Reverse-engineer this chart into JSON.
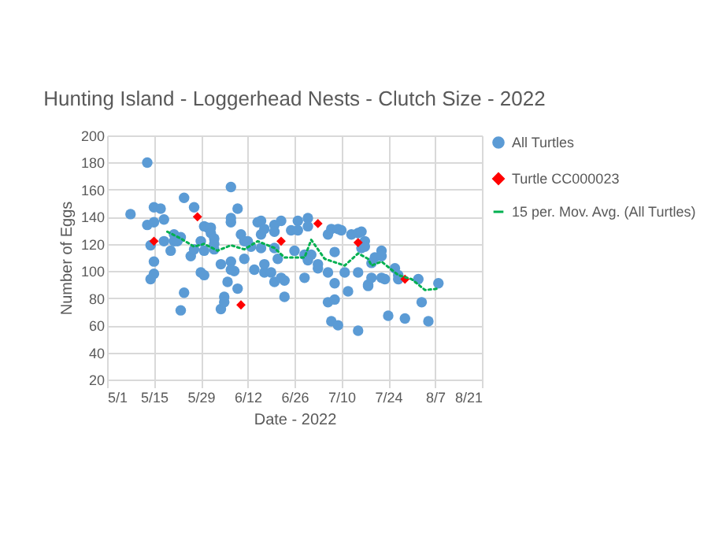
{
  "chart_data": {
    "type": "scatter",
    "title": "Hunting Island - Loggerhead Nests - Clutch Size - 2022",
    "xlabel": "Date - 2022",
    "ylabel": "Number of Eggs",
    "xlim": [
      "2022-05-01",
      "2022-08-21"
    ],
    "xticks": [
      {
        "value": "2022-05-01",
        "label": "5/1"
      },
      {
        "value": "2022-05-15",
        "label": "5/15"
      },
      {
        "value": "2022-05-29",
        "label": "5/29"
      },
      {
        "value": "2022-06-12",
        "label": "6/12"
      },
      {
        "value": "2022-06-26",
        "label": "6/26"
      },
      {
        "value": "2022-07-10",
        "label": "7/10"
      },
      {
        "value": "2022-07-24",
        "label": "7/24"
      },
      {
        "value": "2022-08-07",
        "label": "8/7"
      },
      {
        "value": "2022-08-21",
        "label": "8/21"
      }
    ],
    "ylim": [
      20,
      200
    ],
    "yticks": [
      20,
      40,
      60,
      80,
      100,
      120,
      140,
      160,
      180,
      200
    ],
    "grid": true,
    "legend": "right",
    "series": [
      {
        "name": "All Turtles",
        "marker": "circle",
        "color": "#5b9bd5",
        "x": [
          "2022-05-08",
          "2022-05-13",
          "2022-05-13",
          "2022-05-15",
          "2022-05-15",
          "2022-05-14",
          "2022-05-15",
          "2022-05-15",
          "2022-05-14",
          "2022-05-17",
          "2022-05-18",
          "2022-05-18",
          "2022-05-20",
          "2022-05-21",
          "2022-05-21",
          "2022-05-23",
          "2022-05-22",
          "2022-05-24",
          "2022-05-24",
          "2022-05-23",
          "2022-05-26",
          "2022-05-27",
          "2022-05-27",
          "2022-05-29",
          "2022-05-30",
          "2022-05-30",
          "2022-05-31",
          "2022-05-29",
          "2022-05-30",
          "2022-06-01",
          "2022-06-01",
          "2022-06-02",
          "2022-06-02",
          "2022-06-02",
          "2022-06-04",
          "2022-06-05",
          "2022-06-04",
          "2022-06-05",
          "2022-06-06",
          "2022-06-07",
          "2022-06-07",
          "2022-06-07",
          "2022-06-08",
          "2022-06-07",
          "2022-06-09",
          "2022-06-09",
          "2022-06-07",
          "2022-06-10",
          "2022-06-11",
          "2022-06-11",
          "2022-06-12",
          "2022-06-13",
          "2022-06-14",
          "2022-06-15",
          "2022-06-16",
          "2022-06-16",
          "2022-06-16",
          "2022-06-17",
          "2022-06-17",
          "2022-06-17",
          "2022-06-19",
          "2022-06-20",
          "2022-06-20",
          "2022-06-20",
          "2022-06-20",
          "2022-06-21",
          "2022-06-22",
          "2022-06-22",
          "2022-06-23",
          "2022-06-23",
          "2022-06-25",
          "2022-06-26",
          "2022-06-27",
          "2022-06-27",
          "2022-06-29",
          "2022-06-29",
          "2022-06-30",
          "2022-06-30",
          "2022-07-01",
          "2022-06-30",
          "2022-07-03",
          "2022-07-03",
          "2022-07-06",
          "2022-07-07",
          "2022-07-06",
          "2022-07-06",
          "2022-07-07",
          "2022-07-08",
          "2022-07-08",
          "2022-07-08",
          "2022-07-09",
          "2022-07-09",
          "2022-07-10",
          "2022-07-11",
          "2022-07-12",
          "2022-07-13",
          "2022-07-15",
          "2022-07-15",
          "2022-07-15",
          "2022-07-16",
          "2022-07-16",
          "2022-07-18",
          "2022-07-17",
          "2022-07-17",
          "2022-07-18",
          "2022-07-19",
          "2022-07-19",
          "2022-07-20",
          "2022-07-22",
          "2022-07-22",
          "2022-07-22",
          "2022-07-23",
          "2022-07-24",
          "2022-07-26",
          "2022-07-27",
          "2022-07-27",
          "2022-07-29",
          "2022-08-02",
          "2022-08-03",
          "2022-08-05",
          "2022-08-08"
        ],
        "values": [
          142,
          180,
          134,
          147,
          136,
          119,
          107,
          98,
          94,
          146,
          138,
          122,
          115,
          127,
          122,
          125,
          122,
          154,
          84,
          71,
          111,
          147,
          116,
          99,
          97,
          133,
          132,
          122,
          115,
          132,
          128,
          124,
          120,
          116,
          105,
          81,
          72,
          77,
          92,
          162,
          107,
          136,
          100,
          139,
          146,
          87,
          101,
          127,
          122,
          109,
          122,
          118,
          101,
          136,
          137,
          127,
          117,
          99,
          131,
          105,
          99,
          134,
          92,
          129,
          117,
          109,
          137,
          95,
          93,
          81,
          130,
          115,
          137,
          130,
          95,
          112,
          139,
          133,
          112,
          108,
          102,
          105,
          127,
          131,
          99,
          77,
          63,
          79,
          114,
          91,
          60,
          131,
          130,
          99,
          85,
          127,
          99,
          56,
          128,
          117,
          129,
          89,
          122,
          118,
          90,
          95,
          106,
          110,
          115,
          111,
          95,
          94,
          67,
          102,
          97,
          94,
          65,
          94,
          77,
          63,
          91
        ]
      },
      {
        "name": "Turtle CC000023",
        "marker": "diamond",
        "color": "#ff0000",
        "x": [
          "2022-05-15",
          "2022-05-28",
          "2022-06-10",
          "2022-06-22",
          "2022-07-03",
          "2022-07-15",
          "2022-07-29"
        ],
        "values": [
          122,
          140,
          75,
          122,
          135,
          121,
          94
        ]
      },
      {
        "name": "15 per. Mov. Avg. (All Turtles)",
        "type": "line",
        "marker": "none",
        "line_style": "dotted",
        "color": "#00b050",
        "x": [
          "2022-05-19",
          "2022-05-23",
          "2022-05-27",
          "2022-05-30",
          "2022-06-03",
          "2022-06-07",
          "2022-06-11",
          "2022-06-15",
          "2022-06-20",
          "2022-06-23",
          "2022-06-29",
          "2022-07-01",
          "2022-07-05",
          "2022-07-11",
          "2022-07-15",
          "2022-07-18",
          "2022-07-19",
          "2022-07-22",
          "2022-07-27",
          "2022-07-31",
          "2022-08-04",
          "2022-08-08"
        ],
        "values": [
          129,
          124,
          118,
          120,
          115,
          119,
          116,
          122,
          117,
          110,
          110,
          123,
          109,
          104,
          113,
          109,
          104,
          107,
          97,
          94,
          86,
          87
        ]
      }
    ]
  }
}
